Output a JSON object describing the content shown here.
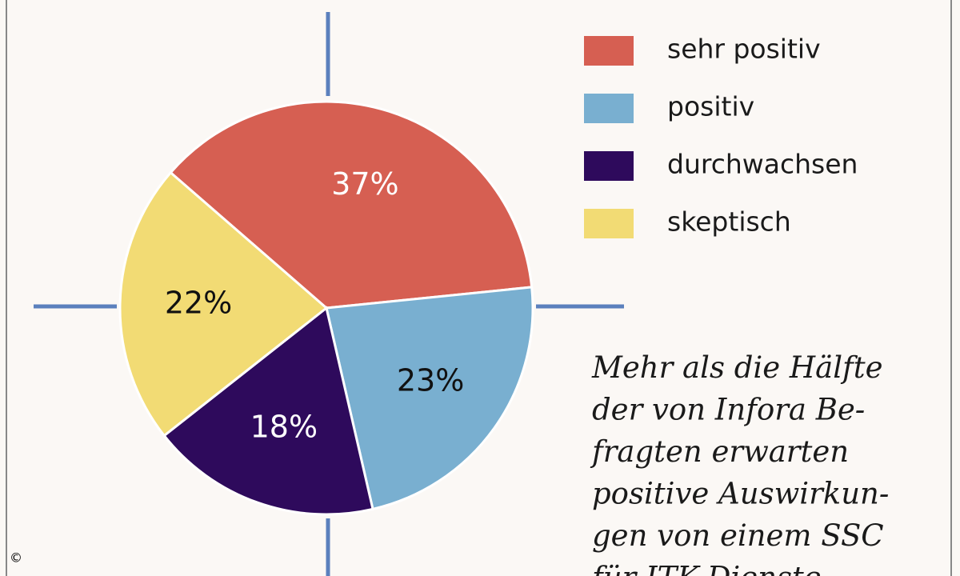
{
  "chart_data": {
    "type": "pie",
    "categories": [
      "sehr positiv",
      "positiv",
      "durchwachsen",
      "skeptisch"
    ],
    "values": [
      37,
      23,
      18,
      22
    ],
    "value_labels": [
      "37%",
      "23%",
      "18%",
      "22%"
    ],
    "colors": [
      "#d65f52",
      "#79afd0",
      "#2e0a5c",
      "#f2db74"
    ],
    "annotation": [
      "Mehr als die Hälfte",
      "der von Infora Be-",
      "fragten erwarten",
      "positive Auswirkun-",
      "gen von einem SSC",
      "für ITK-Dienste"
    ],
    "copyright": "©"
  }
}
